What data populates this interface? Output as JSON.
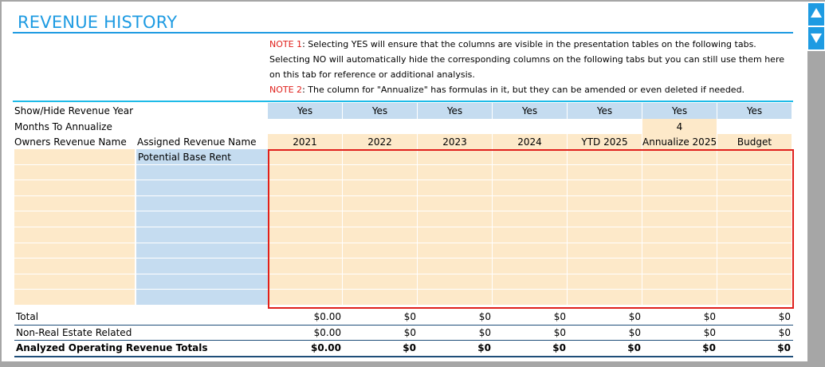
{
  "title": "REVENUE HISTORY",
  "notes": [
    {
      "label": "NOTE 1",
      "text": ": Selecting YES will ensure that the columns are visible in the presentation tables on the following tabs. Selecting NO will automatically hide the corresponding columns on the following tabs but you can still use them here on this tab for reference or additional analysis."
    },
    {
      "label": "NOTE 2",
      "text": ": The column for \"Annualize\" has formulas in it, but they can be amended or even deleted if needed."
    }
  ],
  "rows": {
    "show_hide_label": "Show/Hide Revenue Year",
    "months_label": "Months To Annualize",
    "owners_label": "Owners Revenue Name",
    "assigned_label": "Assigned Revenue Name",
    "total_label": "Total",
    "nonre_label": "Non-Real Estate Related",
    "analyzed_label": "Analyzed Operating Revenue Totals"
  },
  "columns": [
    {
      "visible": "Yes",
      "header": "2021",
      "total": "$0.00",
      "nonre": "$0.00",
      "analyzed": "$0.00"
    },
    {
      "visible": "Yes",
      "header": "2022",
      "total": "$0",
      "nonre": "$0",
      "analyzed": "$0"
    },
    {
      "visible": "Yes",
      "header": "2023",
      "total": "$0",
      "nonre": "$0",
      "analyzed": "$0"
    },
    {
      "visible": "Yes",
      "header": "2024",
      "total": "$0",
      "nonre": "$0",
      "analyzed": "$0"
    },
    {
      "visible": "Yes",
      "header": "YTD 2025",
      "total": "$0",
      "nonre": "$0",
      "analyzed": "$0"
    },
    {
      "visible": "Yes",
      "header": "Annualize 2025",
      "total": "$0",
      "nonre": "$0",
      "analyzed": "$0"
    },
    {
      "visible": "Yes",
      "header": "Budget",
      "total": "$0",
      "nonre": "$0",
      "analyzed": "$0"
    }
  ],
  "months_to_annualize": "4",
  "assigned_names": [
    "Potential Base Rent",
    "",
    "",
    "",
    "",
    "",
    "",
    "",
    "",
    ""
  ],
  "colors": {
    "title_blue": "#1e9be2",
    "note_red": "#e0201b",
    "input_tan": "#fde9c9",
    "assigned_blue": "#c5dcf0"
  },
  "scroll_icons": [
    "scroll-up-icon",
    "scroll-down-icon"
  ]
}
